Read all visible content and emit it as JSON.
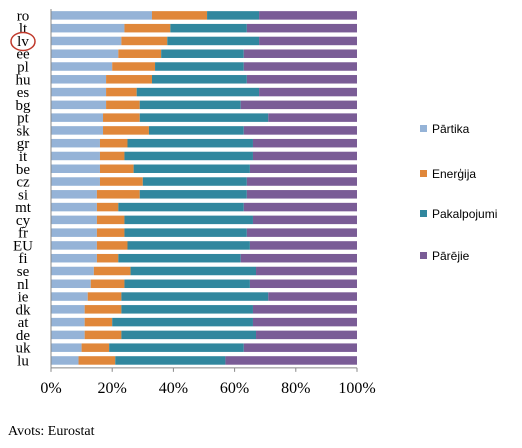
{
  "chart_data": {
    "type": "bar",
    "orientation": "horizontal",
    "stacked": "percent",
    "categories": [
      "ro",
      "lt",
      "lv",
      "ee",
      "pl",
      "hu",
      "es",
      "bg",
      "pt",
      "sk",
      "gr",
      "it",
      "be",
      "cz",
      "si",
      "mt",
      "cy",
      "fr",
      "EU",
      "fi",
      "se",
      "nl",
      "ie",
      "dk",
      "at",
      "de",
      "uk",
      "lu"
    ],
    "highlighted_category": "lv",
    "series": [
      {
        "name": "Pārtika",
        "color": "#95B3D7",
        "values": [
          33,
          24,
          23,
          22,
          20,
          18,
          18,
          18,
          17,
          17,
          16,
          16,
          16,
          16,
          15,
          15,
          15,
          15,
          15,
          15,
          14,
          13,
          12,
          11,
          11,
          11,
          10,
          9
        ]
      },
      {
        "name": "Enerģija",
        "color": "#E0873A",
        "values": [
          18,
          15,
          15,
          14,
          14,
          15,
          10,
          11,
          12,
          15,
          9,
          8,
          11,
          14,
          14,
          7,
          9,
          9,
          10,
          7,
          12,
          11,
          11,
          12,
          9,
          12,
          9,
          12
        ]
      },
      {
        "name": "Pakalpojumi",
        "color": "#31879E",
        "values": [
          17,
          25,
          30,
          27,
          29,
          31,
          40,
          33,
          42,
          31,
          41,
          42,
          38,
          34,
          35,
          41,
          42,
          40,
          40,
          40,
          41,
          41,
          48,
          43,
          46,
          44,
          44,
          36
        ]
      },
      {
        "name": "Pārējie",
        "color": "#7A5C96",
        "values": [
          32,
          36,
          32,
          37,
          37,
          36,
          32,
          38,
          29,
          37,
          34,
          34,
          35,
          36,
          36,
          37,
          34,
          36,
          35,
          38,
          33,
          35,
          29,
          34,
          34,
          33,
          37,
          43
        ]
      }
    ],
    "xlim": [
      0,
      100
    ],
    "xticks": [
      "0%",
      "20%",
      "40%",
      "60%",
      "80%",
      "100%"
    ],
    "grid": false,
    "legend_position": "right"
  },
  "source_note": "Avots: Eurostat"
}
